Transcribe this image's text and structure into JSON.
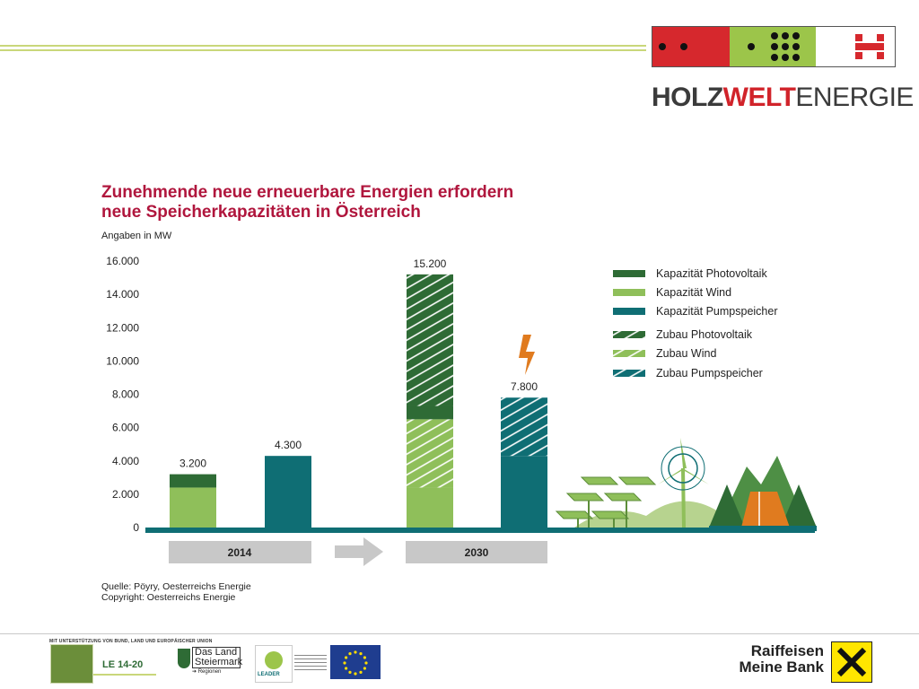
{
  "header": {
    "brand_part1": "HOLZ",
    "brand_part2": "WELT",
    "brand_part3": "ENERGIE"
  },
  "chart_data": {
    "type": "bar",
    "title": "Zunehmende neue erneuerbare Energien erfordern neue Speicherkapazitäten in Österreich",
    "title_line1": "Zunehmende neue erneuerbare Energien erfordern",
    "title_line2": "neue Speicherkapazitäten in Österreich",
    "unit_label": "Angaben in MW",
    "ylim": [
      0,
      16000
    ],
    "yticks": [
      "0",
      "2.000",
      "4.000",
      "6.000",
      "8.000",
      "10.000",
      "12.000",
      "14.000",
      "16.000"
    ],
    "groups": [
      "2014",
      "2030"
    ],
    "bars": [
      {
        "group": "2014",
        "total_label": "3.200",
        "segments": [
          {
            "series": "Kapazität Wind",
            "value": 2400
          },
          {
            "series": "Kapazität Photovoltaik",
            "value": 800
          }
        ]
      },
      {
        "group": "2014",
        "total_label": "4.300",
        "segments": [
          {
            "series": "Kapazität Pumpspeicher",
            "value": 4300
          }
        ]
      },
      {
        "group": "2030",
        "total_label": "15.200",
        "segments": [
          {
            "series": "Kapazität Wind",
            "value": 2400
          },
          {
            "series": "Zubau Wind",
            "value": 4100
          },
          {
            "series": "Kapazität Photovoltaik",
            "value": 800
          },
          {
            "series": "Zubau Photovoltaik",
            "value": 7900
          }
        ]
      },
      {
        "group": "2030",
        "total_label": "7.800",
        "segments": [
          {
            "series": "Kapazität Pumpspeicher",
            "value": 4300
          },
          {
            "series": "Zubau Pumpspeicher",
            "value": 3500
          }
        ]
      }
    ],
    "legend": [
      {
        "name": "Kapazität Photovoltaik",
        "color": "#2e6b35",
        "hatched": false
      },
      {
        "name": "Kapazität Wind",
        "color": "#8fbf5a",
        "hatched": false
      },
      {
        "name": "Kapazität Pumpspeicher",
        "color": "#0f6e74",
        "hatched": false
      },
      {
        "name": "Zubau Photovoltaik",
        "color": "#2e6b35",
        "hatched": true
      },
      {
        "name": "Zubau Wind",
        "color": "#8fbf5a",
        "hatched": true
      },
      {
        "name": "Zubau Pumpspeicher",
        "color": "#0f6e74",
        "hatched": true
      }
    ],
    "legend_position": "top-right",
    "grid": false
  },
  "source": {
    "line1": "Quelle: Pöyry, Oesterreichs Energie",
    "line2": "Copyright: Oesterreichs Energie"
  },
  "footer": {
    "caption": "MIT UNTERSTÜTZUNG VON BUND, LAND UND EUROPÄISCHER UNION",
    "le_label": "LE 14-20",
    "steiermark_line1": "Das Land",
    "steiermark_line2": "Steiermark",
    "steiermark_line3": "➔ Regionen",
    "leader_label": "LEADER",
    "raiffeisen_line1": "Raiffeisen",
    "raiffeisen_line2": "Meine Bank"
  },
  "colors": {
    "title": "#b0163d",
    "pv": "#2e6b35",
    "wind": "#8fbf5a",
    "pump": "#0f6e74",
    "axis": "#0f6e74",
    "category_box": "#c8c8c8",
    "lightning": "#e07b1f",
    "logo_red": "#d6282d",
    "logo_green": "#9cc54a"
  }
}
